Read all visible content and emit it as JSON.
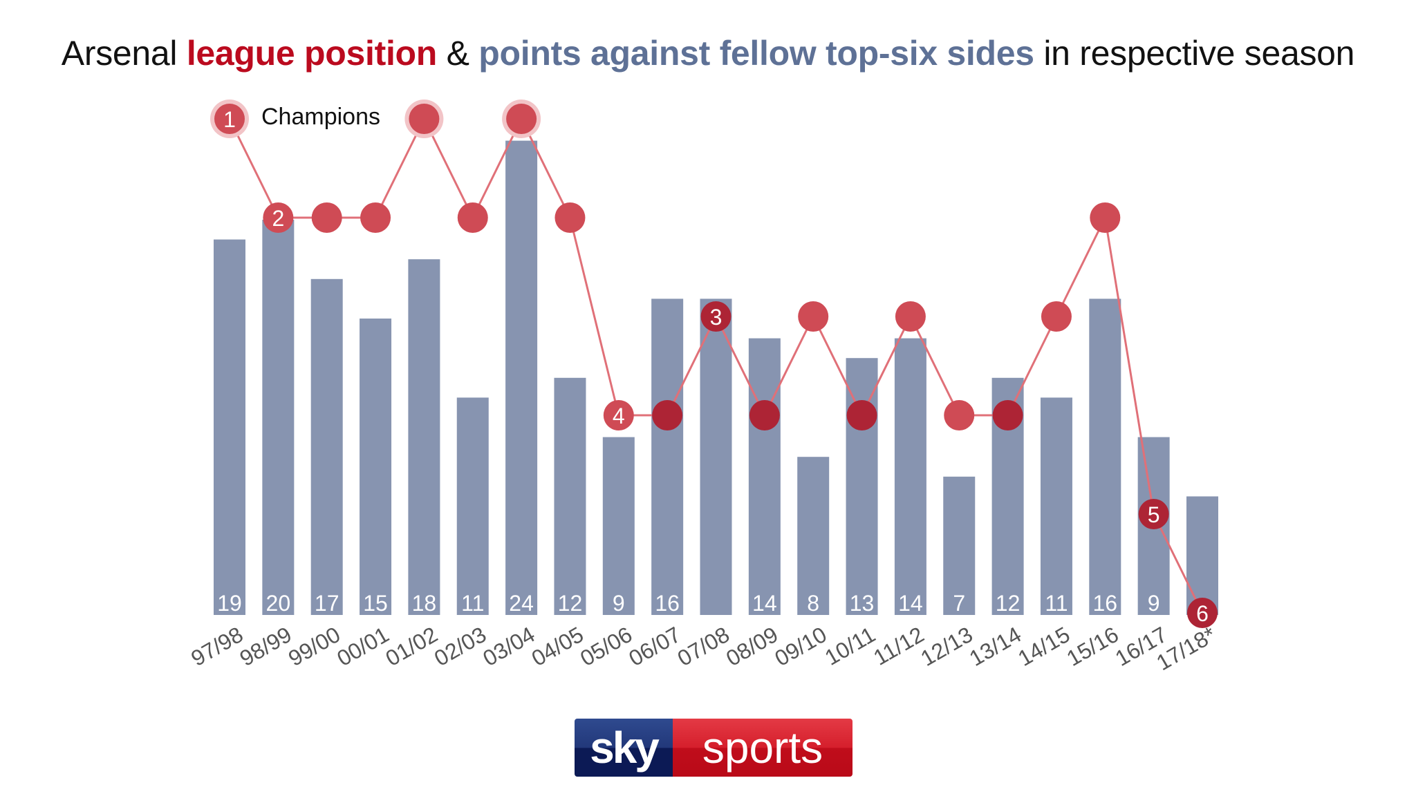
{
  "title": {
    "part1": "Arsenal ",
    "part2": "league position",
    "part3": " & ",
    "part4": "points against fellow top-six sides",
    "part5": " in respective season"
  },
  "legend": {
    "champions_label": "Champions",
    "champions_marker": "1"
  },
  "logo": {
    "left": "sky",
    "right": "sports"
  },
  "colors": {
    "bar": "#8794b0",
    "line": "#e07078",
    "marker_light": "#cf4b55",
    "marker_dark": "#ad2435",
    "marker_halo": "#f2c4c7",
    "title_red": "#bb0a1e",
    "title_blue": "#5e7196",
    "axis_label": "#555555"
  },
  "chart_data": {
    "type": "bar+line",
    "title": "Arsenal league position & points against fellow top-six sides in respective season",
    "categories": [
      "97/98",
      "98/99",
      "99/00",
      "00/01",
      "01/02",
      "02/03",
      "03/04",
      "04/05",
      "05/06",
      "06/07",
      "07/08",
      "08/09",
      "09/10",
      "10/11",
      "11/12",
      "12/13",
      "13/14",
      "14/15",
      "15/16",
      "16/17",
      "17/18*"
    ],
    "series": [
      {
        "name": "Points against fellow top-six sides",
        "type": "bar",
        "values": [
          19,
          20,
          17,
          15,
          18,
          11,
          24,
          12,
          9,
          16,
          16,
          14,
          8,
          13,
          14,
          7,
          12,
          11,
          16,
          9,
          6
        ],
        "labels": [
          "19",
          "20",
          "17",
          "15",
          "18",
          "11",
          "24",
          "12",
          "9",
          "16",
          "",
          "14",
          "8",
          "13",
          "14",
          "7",
          "12",
          "11",
          "16",
          "9",
          ""
        ]
      },
      {
        "name": "League position",
        "type": "line",
        "inverted_axis": true,
        "values": [
          1,
          2,
          2,
          2,
          1,
          2,
          1,
          2,
          4,
          4,
          3,
          4,
          3,
          4,
          3,
          4,
          4,
          3,
          2,
          5,
          6
        ],
        "labels": [
          "1",
          "2",
          "",
          "",
          "",
          "",
          "",
          "",
          "4",
          "",
          "3",
          "",
          "",
          "",
          "",
          "",
          "",
          "",
          "",
          "5",
          "6"
        ],
        "champions": [
          true,
          false,
          false,
          false,
          true,
          false,
          true,
          false,
          false,
          false,
          false,
          false,
          false,
          false,
          false,
          false,
          false,
          false,
          false,
          false,
          false
        ]
      }
    ],
    "xlabel": "",
    "ylabel": "",
    "legend": [
      "Champions"
    ],
    "ylim_bar": [
      0,
      24
    ],
    "ylim_position": [
      1,
      6
    ],
    "grid": false,
    "annotations": [
      "1 Champions"
    ]
  }
}
